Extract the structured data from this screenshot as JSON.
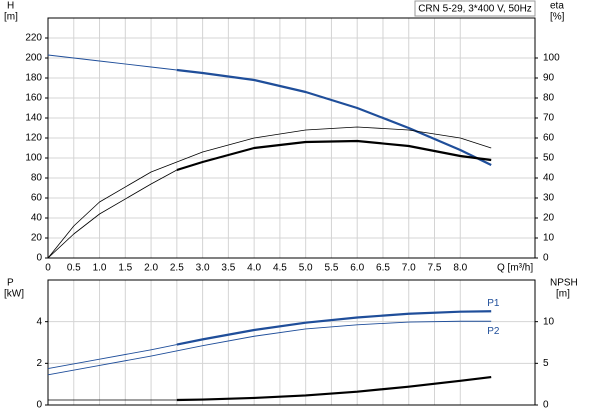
{
  "chart_data": [
    {
      "type": "line",
      "title": "CRN 5-29, 3*400 V, 50Hz",
      "xlabel": "Q [m³/h]",
      "ylabel": "H",
      "yunit": "[m]",
      "y2label": "eta",
      "y2unit": "[%]",
      "xlim": [
        0,
        9.45
      ],
      "xticks": [
        0,
        {
          "value": 0.5,
          "label": "0.5"
        },
        {
          "value": 1,
          "label": "1.0"
        },
        {
          "value": 1.5,
          "label": "1.5"
        },
        {
          "value": 2,
          "label": "2.0"
        },
        {
          "value": 2.5,
          "label": "2.5"
        },
        {
          "value": 3,
          "label": "3.0"
        },
        {
          "value": 3.5,
          "label": "3.5"
        },
        {
          "value": 4,
          "label": "4.0"
        },
        {
          "value": 4.5,
          "label": "4.5"
        },
        {
          "value": 5,
          "label": "5.0"
        },
        {
          "value": 5.5,
          "label": "5.5"
        },
        {
          "value": 6,
          "label": "6.0"
        },
        {
          "value": 6.5,
          "label": "6.5"
        },
        {
          "value": 7,
          "label": "7.0"
        },
        {
          "value": 7.5,
          "label": "7.5"
        },
        {
          "value": 8,
          "label": "8.0"
        }
      ],
      "ylim": [
        0,
        240
      ],
      "yticks": [
        0,
        20,
        40,
        60,
        80,
        100,
        120,
        140,
        160,
        180,
        200,
        220
      ],
      "y2lim": [
        0,
        120
      ],
      "y2ticks": [
        0,
        10,
        20,
        30,
        40,
        50,
        60,
        70,
        80,
        90,
        100
      ],
      "grid": true,
      "series": [
        {
          "color": "#1f4e9a",
          "width": 0.9,
          "x": [
            0,
            1,
            2,
            2.5
          ],
          "values": [
            203,
            197,
            191,
            188
          ]
        },
        {
          "color": "#1f4e9a",
          "width": 2.2,
          "x": [
            2.5,
            3,
            4,
            5,
            6,
            7,
            8,
            8.6
          ],
          "values": [
            188,
            185,
            178,
            166,
            150,
            130,
            108,
            93
          ]
        },
        {
          "color": "#000000",
          "width": 0.8,
          "axis": "y2",
          "x": [
            0,
            0.5,
            1,
            2,
            3,
            4,
            5,
            6,
            7,
            8,
            8.6
          ],
          "values": [
            0,
            16,
            28,
            43,
            53,
            60,
            64,
            65.5,
            64,
            60,
            55
          ]
        },
        {
          "color": "#000000",
          "width": 0.8,
          "axis": "y2",
          "x": [
            0,
            0.5,
            1,
            2,
            2.5
          ],
          "values": [
            0,
            12,
            22,
            37,
            44
          ]
        },
        {
          "color": "#000000",
          "width": 2.2,
          "axis": "y2",
          "x": [
            2.5,
            3,
            4,
            5,
            6,
            7,
            8,
            8.6
          ],
          "values": [
            44,
            48,
            55,
            58,
            58.5,
            56,
            51,
            49
          ]
        }
      ]
    },
    {
      "type": "line",
      "ylabel": "P",
      "yunit": "[kW]",
      "y2label": "NPSH",
      "y2unit": "[m]",
      "xlim": [
        0,
        9.45
      ],
      "ylim": [
        0,
        6
      ],
      "yticks": [
        0,
        2,
        4
      ],
      "y2lim": [
        0,
        15
      ],
      "y2ticks": [
        0,
        5,
        10
      ],
      "grid": true,
      "series": [
        {
          "color": "#1f4e9a",
          "width": 0.9,
          "x": [
            0,
            1,
            2,
            2.5
          ],
          "values": [
            1.75,
            2.2,
            2.65,
            2.9
          ]
        },
        {
          "name": "P1",
          "color": "#1f4e9a",
          "width": 2.2,
          "x": [
            2.5,
            3,
            4,
            5,
            6,
            7,
            8,
            8.6
          ],
          "values": [
            2.9,
            3.15,
            3.6,
            3.95,
            4.2,
            4.38,
            4.48,
            4.5
          ]
        },
        {
          "name": "P2",
          "color": "#1f4e9a",
          "width": 0.9,
          "x": [
            0,
            1,
            2,
            3,
            4,
            5,
            6,
            7,
            8,
            8.6
          ],
          "values": [
            1.45,
            1.9,
            2.35,
            2.85,
            3.3,
            3.65,
            3.85,
            3.98,
            4.02,
            4.02
          ]
        },
        {
          "color": "#000000",
          "width": 0.8,
          "axis": "y2",
          "x": [
            0,
            2.5
          ],
          "values": [
            0.6,
            0.6
          ]
        },
        {
          "color": "#000000",
          "width": 2.2,
          "axis": "y2",
          "x": [
            2.5,
            3,
            4,
            5,
            6,
            7,
            8,
            8.6
          ],
          "values": [
            0.6,
            0.65,
            0.85,
            1.15,
            1.6,
            2.2,
            2.9,
            3.35
          ]
        }
      ]
    }
  ]
}
